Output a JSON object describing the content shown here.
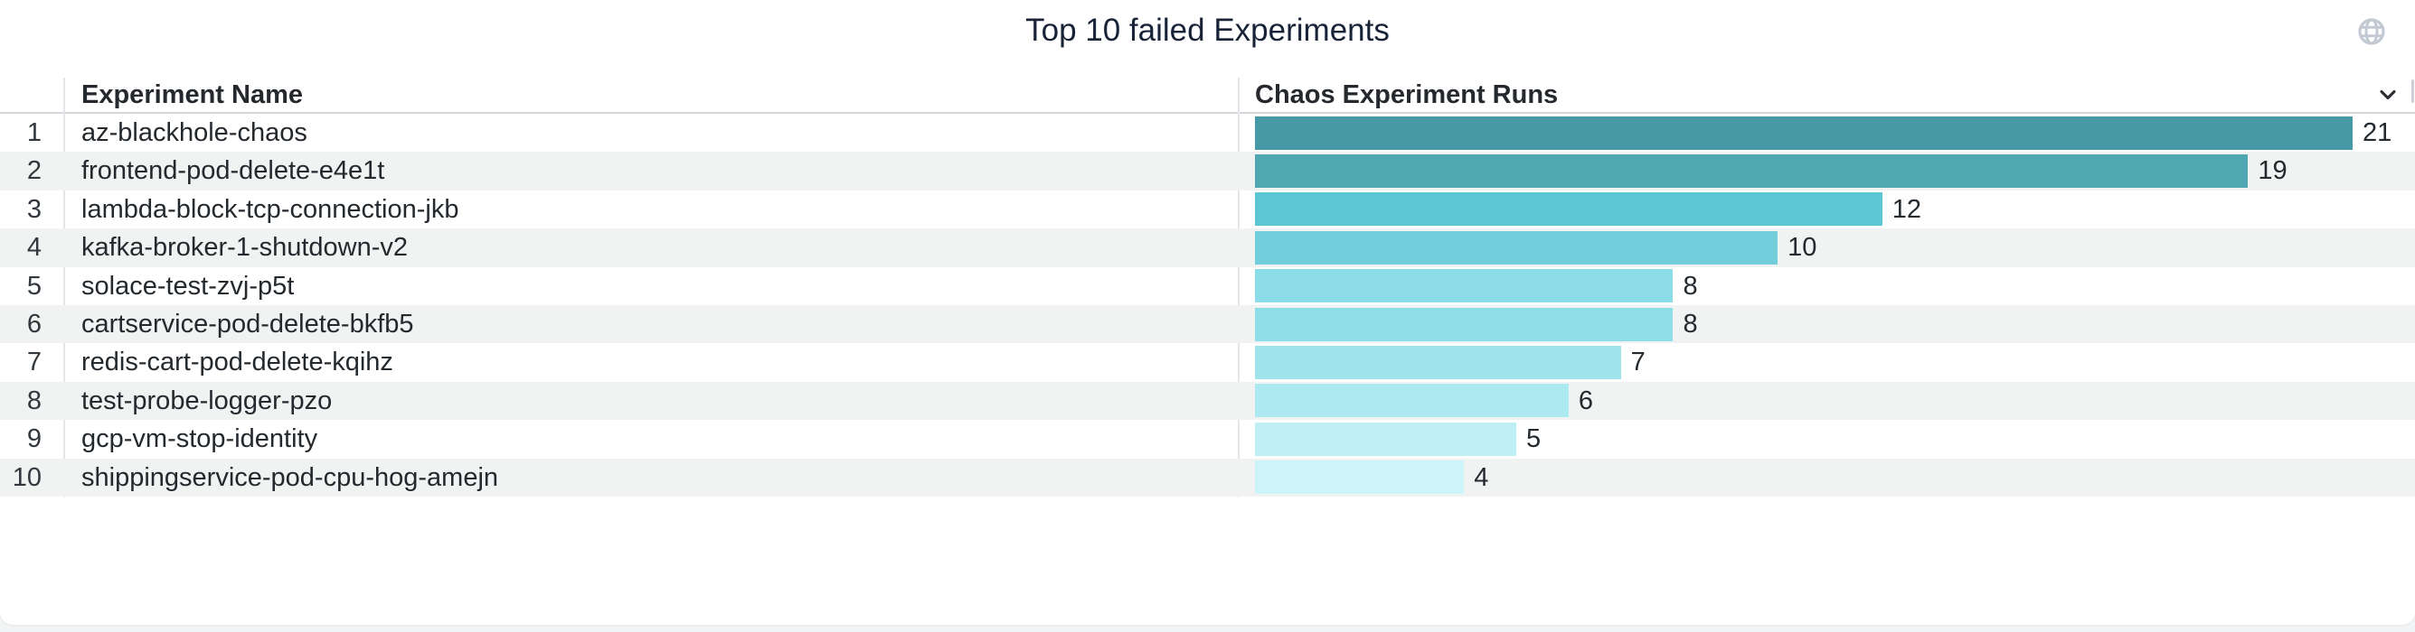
{
  "panel": {
    "title": "Top 10 failed Experiments",
    "background_color": "#ffffff",
    "page_background_color": "#f3f4f5"
  },
  "icons": {
    "globe": "globe-icon",
    "chevron": "chevron-down-icon",
    "globe_color": "#c3c9d2",
    "chevron_color": "#2a2e33"
  },
  "table": {
    "columns": [
      "Experiment Name",
      "Chaos Experiment Runs"
    ],
    "stripe_color": "#f1f2f2",
    "rows": [
      {
        "rank": "1",
        "name": "az-blackhole-chaos",
        "runs": "21",
        "color": "#479aa5"
      },
      {
        "rank": "2",
        "name": "frontend-pod-delete-e4e1t",
        "runs": "19",
        "color": "#4fa7b1"
      },
      {
        "rank": "3",
        "name": "lambda-block-tcp-connection-jkb",
        "runs": "12",
        "color": "#5cc6d3"
      },
      {
        "rank": "4",
        "name": "kafka-broker-1-shutdown-v2",
        "runs": "10",
        "color": "#73cedc"
      },
      {
        "rank": "5",
        "name": "solace-test-zvj-p5t",
        "runs": "8",
        "color": "#8cdde7"
      },
      {
        "rank": "6",
        "name": "cartservice-pod-delete-bkfb5",
        "runs": "8",
        "color": "#8edee8"
      },
      {
        "rank": "7",
        "name": "redis-cart-pod-delete-kqihz",
        "runs": "7",
        "color": "#9fe4eb"
      },
      {
        "rank": "8",
        "name": "test-probe-logger-pzo",
        "runs": "6",
        "color": "#ace9f0"
      },
      {
        "rank": "9",
        "name": "gcp-vm-stop-identity",
        "runs": "5",
        "color": "#bdeff4"
      },
      {
        "rank": "10",
        "name": "shippingservice-pod-cpu-hog-amejn",
        "runs": "4",
        "color": "#cdf4f8"
      }
    ]
  },
  "chart_data": {
    "type": "bar",
    "orientation": "horizontal",
    "title": "Top 10 failed Experiments",
    "value_label": "Chaos Experiment Runs",
    "category_label": "Experiment Name",
    "categories": [
      "az-blackhole-chaos",
      "frontend-pod-delete-e4e1t",
      "lambda-block-tcp-connection-jkb",
      "kafka-broker-1-shutdown-v2",
      "solace-test-zvj-p5t",
      "cartservice-pod-delete-bkfb5",
      "redis-cart-pod-delete-kqihz",
      "test-probe-logger-pzo",
      "gcp-vm-stop-identity",
      "shippingservice-pod-cpu-hog-amejn"
    ],
    "values": [
      21,
      19,
      12,
      10,
      8,
      8,
      7,
      6,
      5,
      4
    ],
    "xlim": [
      0,
      21
    ],
    "grid": false,
    "legend": false,
    "bar_colors": [
      "#479aa5",
      "#4fa7b1",
      "#5cc6d3",
      "#73cedc",
      "#8cdde7",
      "#8edee8",
      "#9fe4eb",
      "#ace9f0",
      "#bdeff4",
      "#cdf4f8"
    ],
    "value_labels_shown": true
  }
}
